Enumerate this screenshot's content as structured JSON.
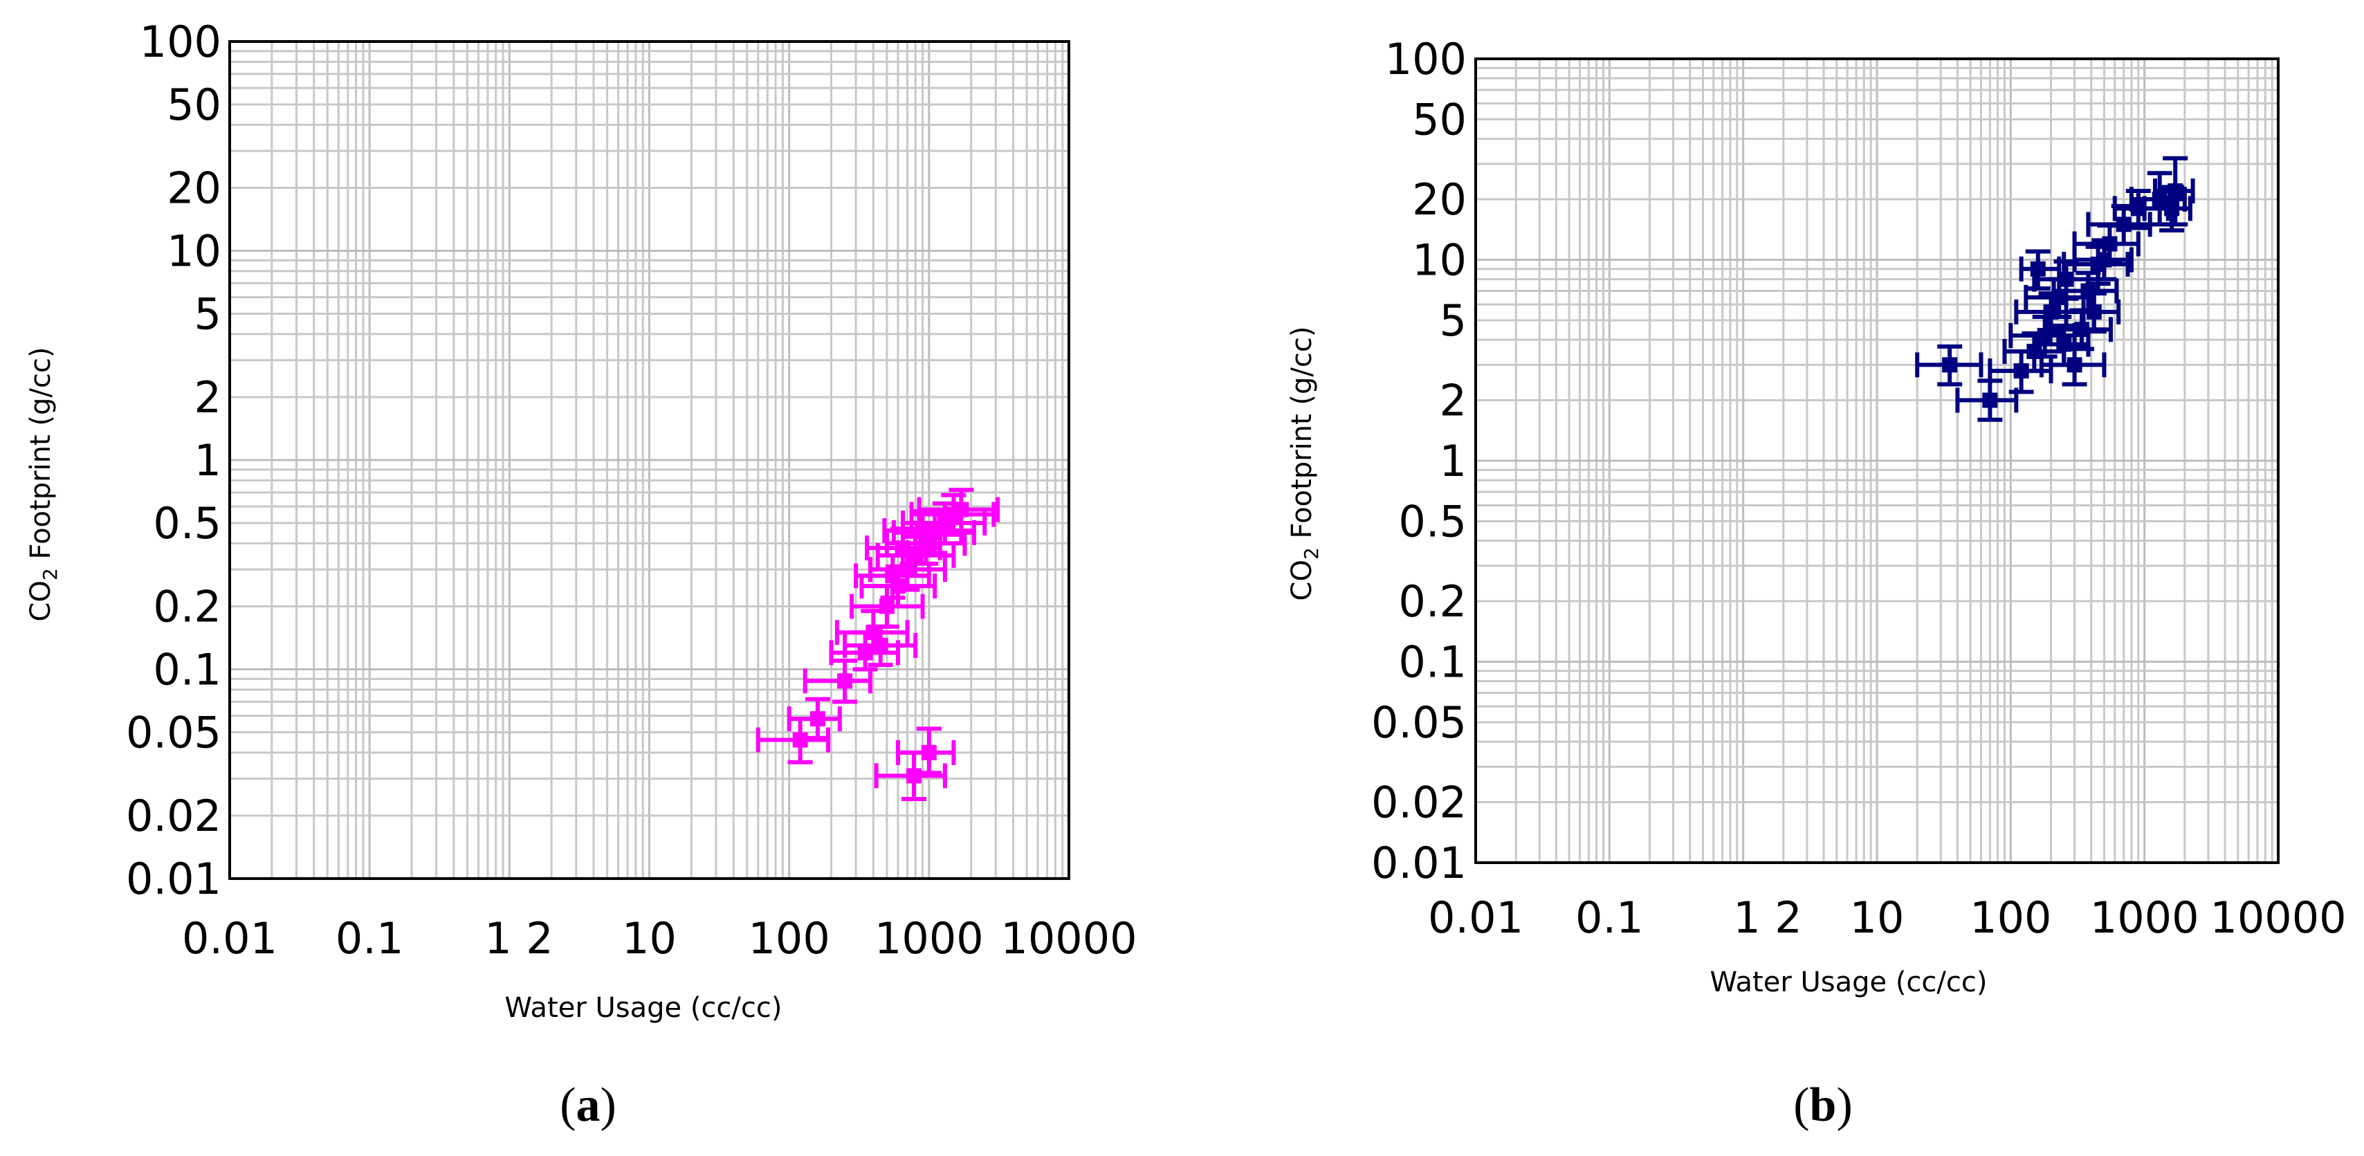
{
  "chart_data": [
    {
      "type": "scatter",
      "panel_label": "a",
      "xlabel": "Water Usage (cc/cc)",
      "ylabel_main": "CO",
      "ylabel_sub": "2",
      "ylabel_rest": " Footprint (g/cc)",
      "x_scale": "log",
      "y_scale": "log",
      "xlim": [
        0.01,
        10000
      ],
      "ylim": [
        0.01,
        100
      ],
      "x_tick_labels": [
        "0.01",
        "0.1",
        "1",
        "2",
        "10",
        "100",
        "1000",
        "10000"
      ],
      "y_tick_labels": [
        "0.01",
        "0.02",
        "0.05",
        "0.1",
        "0.2",
        "0.5",
        "1",
        "2",
        "5",
        "10",
        "20",
        "50",
        "100"
      ],
      "grid": true,
      "series_color": "#ff00ff",
      "points": [
        {
          "x": 120,
          "y": 0.046,
          "xerr": [
            60,
            190
          ],
          "yerr": [
            0.036,
            0.058
          ]
        },
        {
          "x": 160,
          "y": 0.058,
          "xerr": [
            100,
            230
          ],
          "yerr": [
            0.047,
            0.072
          ]
        },
        {
          "x": 250,
          "y": 0.088,
          "xerr": [
            130,
            380
          ],
          "yerr": [
            0.07,
            0.11
          ]
        },
        {
          "x": 1000,
          "y": 0.04,
          "xerr": [
            600,
            1500
          ],
          "yerr": [
            0.032,
            0.052
          ]
        },
        {
          "x": 780,
          "y": 0.031,
          "xerr": [
            420,
            1300
          ],
          "yerr": [
            0.024,
            0.04
          ]
        },
        {
          "x": 400,
          "y": 0.15,
          "xerr": [
            220,
            700
          ],
          "yerr": [
            0.12,
            0.19
          ]
        },
        {
          "x": 500,
          "y": 0.2,
          "xerr": [
            280,
            900
          ],
          "yerr": [
            0.16,
            0.25
          ]
        },
        {
          "x": 600,
          "y": 0.25,
          "xerr": [
            330,
            1100
          ],
          "yerr": [
            0.2,
            0.31
          ]
        },
        {
          "x": 700,
          "y": 0.3,
          "xerr": [
            380,
            1300
          ],
          "yerr": [
            0.24,
            0.37
          ]
        },
        {
          "x": 800,
          "y": 0.35,
          "xerr": [
            430,
            1500
          ],
          "yerr": [
            0.28,
            0.43
          ]
        },
        {
          "x": 950,
          "y": 0.4,
          "xerr": [
            500,
            1800
          ],
          "yerr": [
            0.32,
            0.5
          ]
        },
        {
          "x": 1100,
          "y": 0.45,
          "xerr": [
            560,
            2100
          ],
          "yerr": [
            0.36,
            0.56
          ]
        },
        {
          "x": 1300,
          "y": 0.5,
          "xerr": [
            650,
            2500
          ],
          "yerr": [
            0.4,
            0.62
          ]
        },
        {
          "x": 1500,
          "y": 0.55,
          "xerr": [
            750,
            2900
          ],
          "yerr": [
            0.44,
            0.68
          ]
        },
        {
          "x": 1700,
          "y": 0.58,
          "xerr": [
            850,
            3100
          ],
          "yerr": [
            0.46,
            0.72
          ]
        },
        {
          "x": 450,
          "y": 0.13,
          "xerr": [
            250,
            800
          ],
          "yerr": [
            0.105,
            0.16
          ]
        },
        {
          "x": 350,
          "y": 0.12,
          "xerr": [
            200,
            600
          ],
          "yerr": [
            0.1,
            0.15
          ]
        },
        {
          "x": 550,
          "y": 0.28,
          "xerr": [
            300,
            1000
          ],
          "yerr": [
            0.22,
            0.35
          ]
        },
        {
          "x": 650,
          "y": 0.38,
          "xerr": [
            360,
            1200
          ],
          "yerr": [
            0.3,
            0.47
          ]
        },
        {
          "x": 900,
          "y": 0.46,
          "xerr": [
            480,
            1700
          ],
          "yerr": [
            0.37,
            0.57
          ]
        }
      ]
    },
    {
      "type": "scatter",
      "panel_label": "b",
      "xlabel": "Water Usage (cc/cc)",
      "ylabel_main": "CO",
      "ylabel_sub": "2",
      "ylabel_rest": " Footprint (g/cc)",
      "x_scale": "log",
      "y_scale": "log",
      "xlim": [
        0.01,
        10000
      ],
      "ylim": [
        0.01,
        100
      ],
      "x_tick_labels": [
        "0.01",
        "0.1",
        "1",
        "2",
        "10",
        "100",
        "1000",
        "10000"
      ],
      "y_tick_labels": [
        "0.01",
        "0.02",
        "0.05",
        "0.1",
        "0.2",
        "0.5",
        "1",
        "2",
        "5",
        "10",
        "20",
        "50",
        "100"
      ],
      "grid": true,
      "series_color": "#000080",
      "points": [
        {
          "x": 35,
          "y": 3.0,
          "xerr": [
            20,
            60
          ],
          "yerr": [
            2.4,
            3.7
          ]
        },
        {
          "x": 70,
          "y": 2.0,
          "xerr": [
            40,
            110
          ],
          "yerr": [
            1.6,
            2.5
          ]
        },
        {
          "x": 120,
          "y": 2.8,
          "xerr": [
            70,
            200
          ],
          "yerr": [
            2.2,
            3.5
          ]
        },
        {
          "x": 150,
          "y": 3.5,
          "xerr": [
            90,
            250
          ],
          "yerr": [
            2.8,
            4.3
          ]
        },
        {
          "x": 180,
          "y": 4.2,
          "xerr": [
            100,
            300
          ],
          "yerr": [
            3.3,
            5.2
          ]
        },
        {
          "x": 200,
          "y": 5.5,
          "xerr": [
            110,
            350
          ],
          "yerr": [
            4.4,
            6.8
          ]
        },
        {
          "x": 230,
          "y": 6.5,
          "xerr": [
            130,
            400
          ],
          "yerr": [
            5.2,
            8.0
          ]
        },
        {
          "x": 260,
          "y": 8.0,
          "xerr": [
            150,
            450
          ],
          "yerr": [
            6.4,
            9.8
          ]
        },
        {
          "x": 160,
          "y": 9.0,
          "xerr": [
            120,
            230
          ],
          "yerr": [
            7.2,
            11
          ]
        },
        {
          "x": 300,
          "y": 3.0,
          "xerr": [
            170,
            500
          ],
          "yerr": [
            2.4,
            3.7
          ]
        },
        {
          "x": 340,
          "y": 4.5,
          "xerr": [
            190,
            560
          ],
          "yerr": [
            3.6,
            5.6
          ]
        },
        {
          "x": 380,
          "y": 7.0,
          "xerr": [
            210,
            620
          ],
          "yerr": [
            5.6,
            8.6
          ]
        },
        {
          "x": 450,
          "y": 9.5,
          "xerr": [
            250,
            750
          ],
          "yerr": [
            7.6,
            11.6
          ]
        },
        {
          "x": 550,
          "y": 12,
          "xerr": [
            300,
            900
          ],
          "yerr": [
            9.6,
            14.8
          ]
        },
        {
          "x": 700,
          "y": 15,
          "xerr": [
            380,
            1100
          ],
          "yerr": [
            12,
            18.5
          ]
        },
        {
          "x": 900,
          "y": 18,
          "xerr": [
            600,
            1500
          ],
          "yerr": [
            14.4,
            22
          ]
        },
        {
          "x": 1300,
          "y": 20,
          "xerr": [
            800,
            2000
          ],
          "yerr": [
            15,
            27
          ]
        },
        {
          "x": 1600,
          "y": 18,
          "xerr": [
            1000,
            2200
          ],
          "yerr": [
            14,
            23
          ]
        },
        {
          "x": 1700,
          "y": 22,
          "xerr": [
            1200,
            2300
          ],
          "yerr": [
            15,
            32
          ]
        },
        {
          "x": 420,
          "y": 5.5,
          "xerr": [
            260,
            640
          ],
          "yerr": [
            4.4,
            6.8
          ]
        },
        {
          "x": 250,
          "y": 3.8,
          "xerr": [
            160,
            380
          ],
          "yerr": [
            3.0,
            4.7
          ]
        },
        {
          "x": 500,
          "y": 10,
          "xerr": [
            300,
            800
          ],
          "yerr": [
            8,
            12.5
          ]
        }
      ]
    }
  ]
}
